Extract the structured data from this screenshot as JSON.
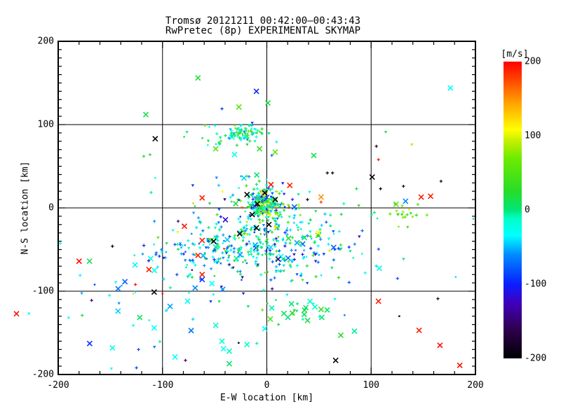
{
  "title": {
    "line1": "Tromsø 20121211 00:42:00–00:43:43",
    "line2": "RwPretec (8p) EXPERIMENTAL SKYMAP"
  },
  "chart_data": {
    "type": "scatter",
    "title": "Tromsø 20121211 00:42:00–00:43:43",
    "subtitle": "RwPretec (8p) EXPERIMENTAL SKYMAP",
    "xlabel": "E-W location [km]",
    "ylabel": "N-S location [km]",
    "xlim": [
      -200,
      200
    ],
    "ylim": [
      -200,
      200
    ],
    "xticks": [
      -200,
      -100,
      0,
      100,
      200
    ],
    "yticks": [
      -200,
      -100,
      0,
      100,
      200
    ],
    "x_minor_step": 20,
    "y_minor_step": 10,
    "grid": true,
    "background": "#ffffff",
    "axis_color": "#000000",
    "color_scale": {
      "label": "[m/s]",
      "min": -200,
      "max": 200,
      "ticks": [
        200,
        100,
        0,
        -100,
        -200
      ],
      "stops": [
        [
          -200,
          "#000000"
        ],
        [
          -160,
          "#300050"
        ],
        [
          -125,
          "#4000be"
        ],
        [
          -100,
          "#0a1eff"
        ],
        [
          -60,
          "#008cff"
        ],
        [
          -35,
          "#00ffff"
        ],
        [
          -12,
          "#00ffc8"
        ],
        [
          0,
          "#00e678"
        ],
        [
          25,
          "#28dc28"
        ],
        [
          70,
          "#6eeb00"
        ],
        [
          95,
          "#cdf000"
        ],
        [
          108,
          "#ffff00"
        ],
        [
          145,
          "#ffa000"
        ],
        [
          172,
          "#ff5000"
        ],
        [
          200,
          "#ff0000"
        ]
      ]
    },
    "seed": 42,
    "clusters": [
      {
        "cx": -22,
        "cy": 90,
        "sx": 10,
        "sy": 4.5,
        "n": 70,
        "v_mean": 0,
        "v_spread": 30,
        "x_frac": 0.04
      },
      {
        "cx": -28,
        "cy": 86,
        "sx": 20,
        "sy": 9,
        "n": 25,
        "v_mean": -10,
        "v_spread": 35,
        "x_frac": 0.1
      },
      {
        "cx": -3,
        "cy": 6,
        "sx": 7,
        "sy": 8,
        "n": 150,
        "v_mean": -5,
        "v_spread": 60,
        "x_frac": 0.05
      },
      {
        "cx": -6,
        "cy": 2,
        "sx": 22,
        "sy": 18,
        "n": 110,
        "v_mean": -15,
        "v_spread": 65,
        "x_frac": 0.05
      },
      {
        "cx": 2,
        "cy": -45,
        "sx": 42,
        "sy": 20,
        "n": 320,
        "v_mean": -25,
        "v_spread": 45,
        "x_frac": 0.05
      },
      {
        "cx": -72,
        "cy": -52,
        "sx": 22,
        "sy": 15,
        "n": 55,
        "v_mean": -45,
        "v_spread": 35,
        "x_frac": 0.05
      },
      {
        "cx": 132,
        "cy": -6,
        "sx": 8,
        "sy": 6,
        "n": 20,
        "v_mean": 55,
        "v_spread": 25,
        "x_frac": 0.05
      },
      {
        "cx": 28,
        "cy": -122,
        "sx": 20,
        "sy": 11,
        "n": 26,
        "v_mean": 10,
        "v_spread": 18,
        "x_frac": 0.55
      },
      {
        "cx": -100,
        "cy": -115,
        "sx": 40,
        "sy": 25,
        "n": 30,
        "v_mean": -35,
        "v_spread": 30,
        "x_frac": 0.35
      },
      {
        "cx": 0,
        "cy": -55,
        "sx": 85,
        "sy": 42,
        "n": 60,
        "v_mean": -20,
        "v_spread": 60,
        "x_frac": 0.1
      }
    ],
    "points": [
      [
        -66,
        156,
        20,
        "x"
      ],
      [
        -116,
        112,
        15,
        "x"
      ],
      [
        -10,
        140,
        -95,
        "x"
      ],
      [
        1,
        126,
        15,
        "x"
      ],
      [
        -43,
        119,
        -90,
        "p"
      ],
      [
        -14,
        102,
        -85,
        "t"
      ],
      [
        176,
        144,
        -35,
        "x"
      ],
      [
        114,
        91,
        10,
        "t"
      ],
      [
        -107,
        83,
        -195,
        "x"
      ],
      [
        -49,
        71,
        55,
        "x"
      ],
      [
        -7,
        71,
        30,
        "x"
      ],
      [
        8,
        67,
        60,
        "x"
      ],
      [
        -31,
        64,
        -30,
        "x"
      ],
      [
        105,
        74,
        -190,
        "p"
      ],
      [
        139,
        76,
        90,
        "t"
      ],
      [
        45,
        63,
        15,
        "x"
      ],
      [
        107,
        58,
        190,
        "p"
      ],
      [
        58,
        42,
        -190,
        "p"
      ],
      [
        63,
        42,
        -190,
        "p"
      ],
      [
        101,
        37,
        -195,
        "x"
      ],
      [
        86,
        23,
        15,
        "p"
      ],
      [
        109,
        23,
        -190,
        "p"
      ],
      [
        131,
        26,
        -190,
        "p"
      ],
      [
        167,
        32,
        -190,
        "p"
      ],
      [
        41,
        19,
        -35,
        "t"
      ],
      [
        39,
        10,
        -190,
        "p"
      ],
      [
        52,
        13,
        150,
        "x"
      ],
      [
        52,
        7,
        185,
        "p"
      ],
      [
        148,
        13,
        190,
        "x"
      ],
      [
        157,
        14,
        190,
        "x"
      ],
      [
        133,
        8,
        -60,
        "x"
      ],
      [
        -112,
        64,
        20,
        "p"
      ],
      [
        -118,
        62,
        15,
        "p"
      ],
      [
        -107,
        36,
        -30,
        "d"
      ],
      [
        -71,
        27,
        -90,
        "t"
      ],
      [
        -62,
        12,
        190,
        "x"
      ],
      [
        -85,
        -16,
        -150,
        "p"
      ],
      [
        -90,
        -27,
        -35,
        "t"
      ],
      [
        -79,
        -22,
        190,
        "x"
      ],
      [
        -19,
        16,
        -195,
        "x"
      ],
      [
        4,
        28,
        195,
        "x"
      ],
      [
        22,
        27,
        190,
        "x"
      ],
      [
        21,
        0,
        190,
        "d"
      ],
      [
        -9,
        5,
        -195,
        "x"
      ],
      [
        -2,
        18,
        -195,
        "x"
      ],
      [
        8,
        10,
        -195,
        "x"
      ],
      [
        -14,
        -8,
        -195,
        "x"
      ],
      [
        2,
        -20,
        -195,
        "x"
      ],
      [
        -26,
        -31,
        -195,
        "x"
      ],
      [
        -10,
        -24,
        -195,
        "x"
      ],
      [
        -51,
        -40,
        -195,
        "x"
      ],
      [
        -62,
        -39,
        190,
        "x"
      ],
      [
        -66,
        -57,
        190,
        "x"
      ],
      [
        -41,
        -49,
        190,
        "d"
      ],
      [
        -62,
        -80,
        190,
        "x"
      ],
      [
        -62,
        -86,
        -90,
        "x"
      ],
      [
        -180,
        -64,
        195,
        "x"
      ],
      [
        -170,
        -64,
        10,
        "x"
      ],
      [
        -148,
        -46,
        -195,
        "p"
      ],
      [
        -113,
        -74,
        190,
        "x"
      ],
      [
        -106,
        -54,
        -80,
        "p"
      ],
      [
        -103,
        -58,
        -90,
        "p"
      ],
      [
        -101,
        -50,
        -60,
        "p"
      ],
      [
        -179,
        -81,
        -35,
        "p"
      ],
      [
        -126,
        -92,
        195,
        "p"
      ],
      [
        -128,
        -103,
        95,
        "d"
      ],
      [
        -108,
        -101,
        -195,
        "x"
      ],
      [
        -100,
        -103,
        195,
        "d"
      ],
      [
        -168,
        -111,
        -150,
        "p"
      ],
      [
        -190,
        -132,
        -30,
        "t"
      ],
      [
        -177,
        -129,
        20,
        "p"
      ],
      [
        -240,
        -127,
        195,
        "x"
      ],
      [
        -228,
        -127,
        -30,
        "t"
      ],
      [
        -128,
        -141,
        -30,
        "p"
      ],
      [
        -108,
        -144,
        -35,
        "x"
      ],
      [
        -148,
        -168,
        -30,
        "x"
      ],
      [
        -123,
        -170,
        -90,
        "p"
      ],
      [
        -149,
        -193,
        -35,
        "t"
      ],
      [
        -125,
        -192,
        -85,
        "p"
      ],
      [
        -76,
        -112,
        -30,
        "x"
      ],
      [
        -49,
        -141,
        -15,
        "x"
      ],
      [
        -43,
        -160,
        -15,
        "x"
      ],
      [
        -88,
        -179,
        -35,
        "x"
      ],
      [
        -78,
        -183,
        -150,
        "p"
      ],
      [
        -36,
        -172,
        -10,
        "x"
      ],
      [
        -36,
        -187,
        5,
        "x"
      ],
      [
        -27,
        -162,
        -195,
        "d"
      ],
      [
        -19,
        -164,
        -15,
        "x"
      ],
      [
        -2,
        -145,
        -30,
        "x"
      ],
      [
        107,
        -112,
        190,
        "x"
      ],
      [
        146,
        -147,
        190,
        "x"
      ],
      [
        166,
        -165,
        195,
        "x"
      ],
      [
        185,
        -189,
        195,
        "x"
      ],
      [
        66,
        -183,
        -195,
        "x"
      ],
      [
        164,
        -109,
        -195,
        "p"
      ],
      [
        127,
        -130,
        -195,
        "d"
      ],
      [
        84,
        -148,
        -5,
        "x"
      ]
    ]
  }
}
